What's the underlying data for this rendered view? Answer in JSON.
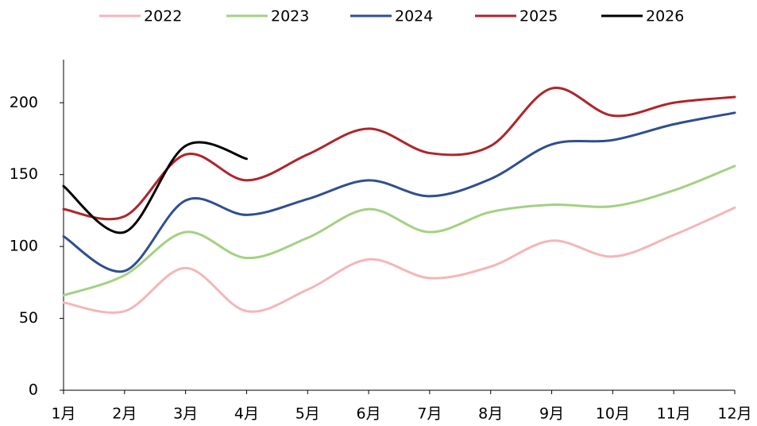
{
  "chart_data": {
    "type": "line",
    "categories": [
      "1月",
      "2月",
      "3月",
      "4月",
      "5月",
      "6月",
      "7月",
      "8月",
      "9月",
      "10月",
      "11月",
      "12月"
    ],
    "series": [
      {
        "name": "2022",
        "color": "#f4b6b8",
        "values": [
          61,
          55,
          85,
          55,
          70,
          91,
          78,
          86,
          104,
          93,
          108,
          127
        ]
      },
      {
        "name": "2023",
        "color": "#a3d183",
        "values": [
          66,
          80,
          110,
          92,
          106,
          126,
          110,
          124,
          129,
          128,
          139,
          156
        ]
      },
      {
        "name": "2024",
        "color": "#2f4f8f",
        "values": [
          107,
          83,
          132,
          122,
          133,
          146,
          135,
          147,
          171,
          174,
          185,
          193
        ]
      },
      {
        "name": "2025",
        "color": "#b0242b",
        "values": [
          126,
          121,
          164,
          146,
          164,
          182,
          165,
          170,
          210,
          191,
          200,
          204
        ]
      },
      {
        "name": "2026",
        "color": "#000000",
        "values": [
          142,
          110,
          170,
          161,
          null,
          null,
          null,
          null,
          null,
          null,
          null,
          null
        ]
      }
    ],
    "ylim": [
      0,
      230
    ],
    "yticks": [
      0,
      50,
      100,
      150,
      200
    ],
    "grid": false,
    "legend": "top"
  }
}
